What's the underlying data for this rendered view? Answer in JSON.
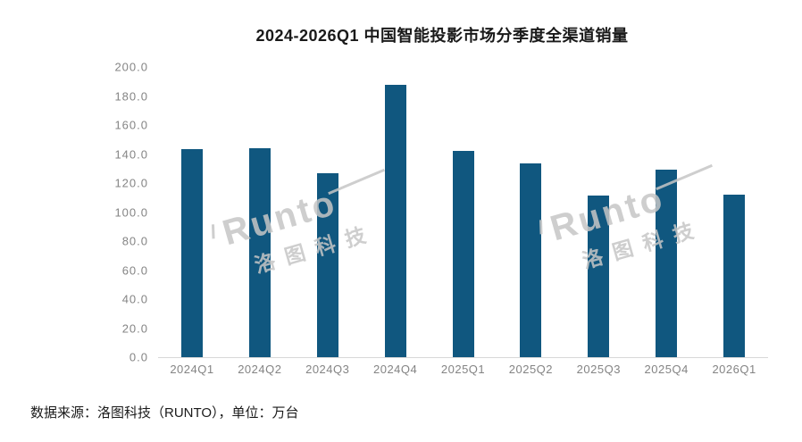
{
  "title": "2024-2026Q1 中国智能投影市场分季度全渠道销量",
  "source_note": "数据来源：洛图科技（RUNTO），单位：万台",
  "watermark": {
    "brand": "Runto",
    "brand_cn": "洛图科技"
  },
  "colors": {
    "bar": "#10577f",
    "axis_line": "#d8d8d8",
    "tick_label": "#848484",
    "title_text": "#1a1a1a",
    "watermark": "#c6c6c6",
    "background": "#ffffff"
  },
  "chart_data": {
    "type": "bar",
    "title": "2024-2026Q1 中国智能投影市场分季度全渠道销量",
    "categories": [
      "2024Q1",
      "2024Q2",
      "2024Q3",
      "2024Q4",
      "2025Q1",
      "2025Q2",
      "2025Q3",
      "2025Q4",
      "2026Q1"
    ],
    "values": [
      143.4,
      144.2,
      126.7,
      187.8,
      142.3,
      133.4,
      111.3,
      129.4,
      111.9
    ],
    "xlabel": "",
    "ylabel": "",
    "unit": "万台",
    "ylim": [
      0,
      200
    ],
    "ytick_interval": 20,
    "ytick_format_decimals": 1,
    "grid": false,
    "legend": false,
    "bar_color": "#10577f"
  }
}
